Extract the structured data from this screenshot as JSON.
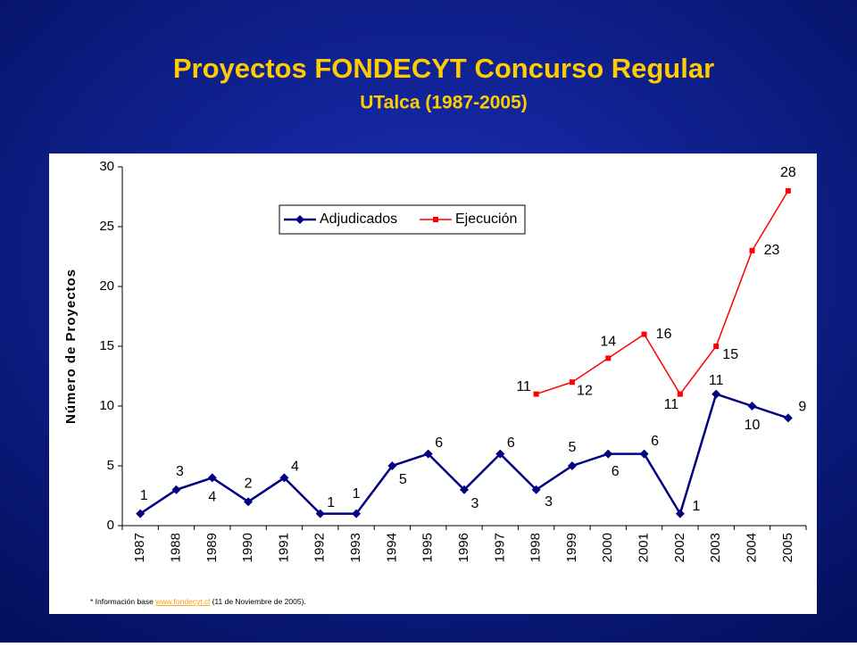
{
  "chart_data": {
    "type": "line",
    "title": "Proyectos FONDECYT Concurso Regular",
    "subtitle": "UTalca (1987-2005)",
    "y_label": "Número de Proyectos",
    "categories": [
      "1987",
      "1988",
      "1989",
      "1990",
      "1991",
      "1992",
      "1993",
      "1994",
      "1995",
      "1996",
      "1997",
      "1998",
      "1999",
      "2000",
      "2001",
      "2002",
      "2003",
      "2004",
      "2005"
    ],
    "series": [
      {
        "name": "Adjudicados",
        "color": "#000080",
        "marker": "diamond",
        "values": [
          1,
          3,
          4,
          2,
          4,
          1,
          1,
          5,
          6,
          3,
          6,
          3,
          5,
          6,
          6,
          1,
          11,
          10,
          9
        ]
      },
      {
        "name": "Ejecución",
        "color": "#ff0000",
        "marker": "square",
        "values": [
          null,
          null,
          null,
          null,
          null,
          null,
          null,
          null,
          null,
          null,
          null,
          11,
          12,
          14,
          16,
          11,
          15,
          23,
          28
        ]
      }
    ],
    "ylim": [
      0,
      30
    ],
    "yticks": [
      0,
      5,
      10,
      15,
      20,
      25,
      30
    ],
    "grid": false,
    "legend": "top-center",
    "footnote": {
      "prefix": "* Información base",
      "link": "www.fondecyt.cl",
      "suffix": "(11 de Noviembre de 2005)."
    }
  }
}
